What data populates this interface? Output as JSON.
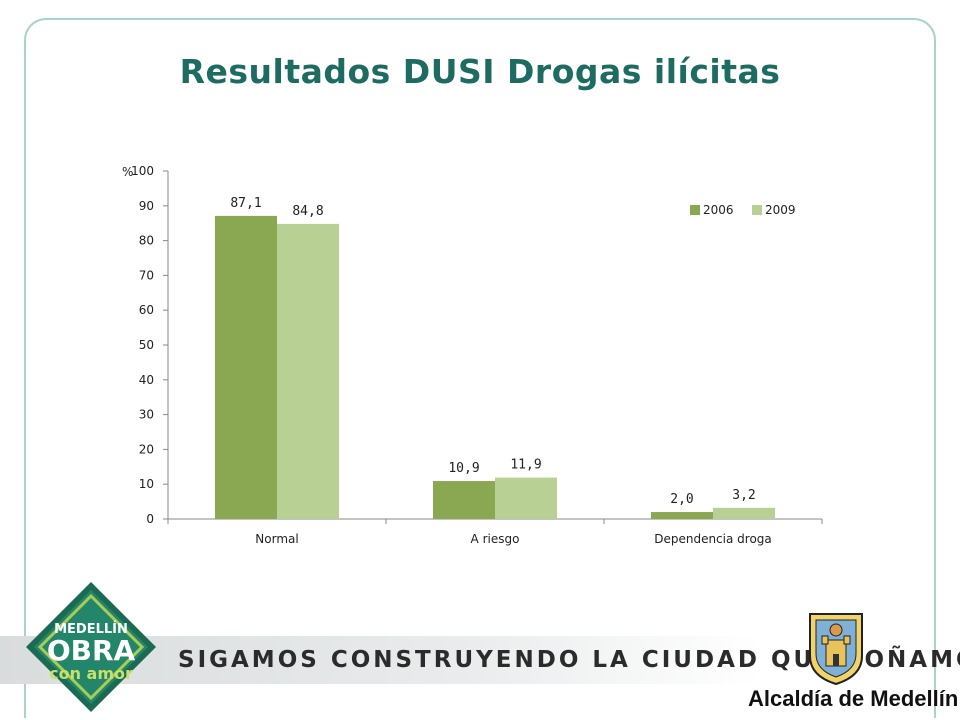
{
  "page": {
    "title": "Resultados DUSI Drogas ilícitas"
  },
  "chart_data": {
    "type": "bar",
    "ylabel": "%",
    "ylim": [
      0,
      100
    ],
    "yticks": [
      0,
      10,
      20,
      30,
      40,
      50,
      60,
      70,
      80,
      90,
      100
    ],
    "categories": [
      "Normal",
      "A riesgo",
      "Dependencia droga"
    ],
    "series": [
      {
        "name": "2006",
        "values": [
          87.1,
          10.9,
          2.0
        ],
        "labels": [
          "87,1",
          "10,9",
          "2,0"
        ],
        "color": "#8aa751"
      },
      {
        "name": "2009",
        "values": [
          84.8,
          11.9,
          3.2
        ],
        "labels": [
          "84,8",
          "11,9",
          "3,2"
        ],
        "color": "#b9d095"
      }
    ],
    "legend": "top-right",
    "grid": false
  },
  "footer": {
    "slogan": "SIGAMOS CONSTRUYENDO LA CIUDAD QUE SOÑAMOS",
    "badge": {
      "line1": "MEDELLÍN",
      "line2": "OBRA",
      "line3": "con amor"
    },
    "alcaldia": "Alcaldía de Medellín"
  }
}
